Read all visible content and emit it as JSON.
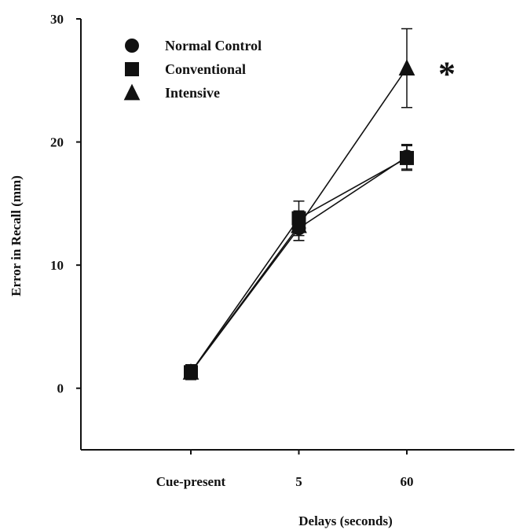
{
  "chart_data": {
    "type": "line",
    "title": "",
    "xlabel": "Delays (seconds)",
    "ylabel": "Error in Recall (mm)",
    "categories": [
      "Cue-present",
      "5",
      "60"
    ],
    "ylim": [
      -5,
      30
    ],
    "yticks": [
      0,
      10,
      20,
      30
    ],
    "grid": false,
    "legend_position": "top-left",
    "series": [
      {
        "name": "Normal Control",
        "marker": "circle",
        "values": [
          1.3,
          13.0,
          18.8
        ],
        "error": [
          0.6,
          1.0,
          1.0
        ]
      },
      {
        "name": "Conventional",
        "marker": "square",
        "values": [
          1.3,
          13.8,
          18.7
        ],
        "error": [
          0.6,
          1.4,
          1.0
        ]
      },
      {
        "name": "Intensive",
        "marker": "triangle",
        "values": [
          1.3,
          13.2,
          26.0
        ],
        "error": [
          0.6,
          1.2,
          3.2
        ]
      }
    ],
    "annotations": [
      {
        "text": "*",
        "category": "60",
        "series": "Intensive"
      }
    ],
    "colors": {
      "line": "#111111",
      "marker": "#111111"
    }
  }
}
